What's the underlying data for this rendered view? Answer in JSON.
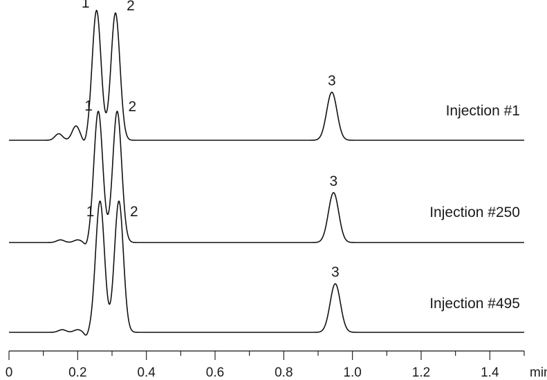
{
  "chart_data": {
    "type": "line",
    "xlabel": "min",
    "xlim": [
      0,
      1.5
    ],
    "x_ticks": [
      "0",
      "0.2",
      "0.4",
      "0.6",
      "0.8",
      "1.0",
      "1.2",
      "1.4"
    ],
    "x_tick_values": [
      0,
      0.2,
      0.4,
      0.6,
      0.8,
      1.0,
      1.2,
      1.4
    ],
    "minor_tick_step": 0.1,
    "grid": false,
    "legend": "none",
    "series": [
      {
        "name": "Injection #1",
        "peaks": [
          {
            "label": "1",
            "time": 0.255,
            "relative_height": 1.0
          },
          {
            "label": "2",
            "time": 0.31,
            "relative_height": 0.98
          },
          {
            "label": "3",
            "time": 0.94,
            "relative_height": 0.37
          }
        ],
        "minor_features": [
          {
            "time": 0.145,
            "relative_height": 0.05
          },
          {
            "time": 0.195,
            "relative_height": 0.11
          }
        ]
      },
      {
        "name": "Injection #250",
        "peaks": [
          {
            "label": "1",
            "time": 0.26,
            "relative_height": 1.0
          },
          {
            "label": "2",
            "time": 0.315,
            "relative_height": 1.0
          },
          {
            "label": "3",
            "time": 0.945,
            "relative_height": 0.38
          }
        ],
        "minor_features": [
          {
            "time": 0.15,
            "relative_height": 0.02
          },
          {
            "time": 0.2,
            "relative_height": 0.02
          }
        ]
      },
      {
        "name": "Injection #495",
        "peaks": [
          {
            "label": "1",
            "time": 0.265,
            "relative_height": 1.0
          },
          {
            "label": "2",
            "time": 0.32,
            "relative_height": 1.0
          },
          {
            "label": "3",
            "time": 0.95,
            "relative_height": 0.37
          }
        ],
        "minor_features": [
          {
            "time": 0.155,
            "relative_height": 0.02
          },
          {
            "time": 0.2,
            "relative_height": 0.02
          }
        ]
      }
    ]
  }
}
